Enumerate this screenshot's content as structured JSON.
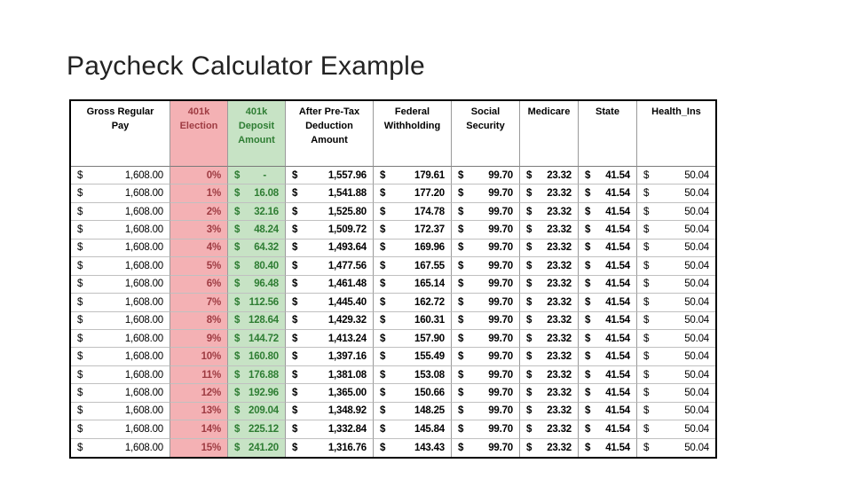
{
  "title": "Paycheck Calculator Example",
  "colors": {
    "election_bg": "#f4b1b4",
    "deposit_bg": "#c7e3c5",
    "election_text": "#9e3b42",
    "deposit_text": "#2e7d33",
    "border_outer": "#000000",
    "body_text": "#000000"
  },
  "table": {
    "columns": [
      {
        "id": "gross",
        "label": "Gross Regular\nPay",
        "type": "money",
        "header_color": "black",
        "bg": "none",
        "bold": false
      },
      {
        "id": "election",
        "label": "401k\nElection",
        "type": "percent",
        "header_color": "red",
        "bg": "pink",
        "bold": true
      },
      {
        "id": "deposit",
        "label": "401k\nDeposit\nAmount",
        "type": "money",
        "header_color": "green",
        "bg": "green",
        "bold": true
      },
      {
        "id": "after",
        "label": "After Pre-Tax\nDeduction\nAmount",
        "type": "money",
        "header_color": "black",
        "bg": "none",
        "bold": true
      },
      {
        "id": "federal",
        "label": "Federal\nWithholding",
        "type": "money",
        "header_color": "black",
        "bg": "none",
        "bold": true
      },
      {
        "id": "ss",
        "label": "Social\nSecurity",
        "type": "money",
        "header_color": "black",
        "bg": "none",
        "bold": true
      },
      {
        "id": "medicare",
        "label": "Medicare",
        "type": "money",
        "header_color": "black",
        "bg": "none",
        "bold": true
      },
      {
        "id": "state",
        "label": "State",
        "type": "money",
        "header_color": "black",
        "bg": "none",
        "bold": true
      },
      {
        "id": "health",
        "label": "Health_Ins",
        "type": "money",
        "header_color": "black",
        "bg": "none",
        "bold": false
      }
    ],
    "currency_symbol": "$",
    "rows": [
      {
        "gross": "1,608.00",
        "election": "0%",
        "deposit": "-",
        "after": "1,557.96",
        "federal": "179.61",
        "ss": "99.70",
        "medicare": "23.32",
        "state": "41.54",
        "health": "50.04"
      },
      {
        "gross": "1,608.00",
        "election": "1%",
        "deposit": "16.08",
        "after": "1,541.88",
        "federal": "177.20",
        "ss": "99.70",
        "medicare": "23.32",
        "state": "41.54",
        "health": "50.04"
      },
      {
        "gross": "1,608.00",
        "election": "2%",
        "deposit": "32.16",
        "after": "1,525.80",
        "federal": "174.78",
        "ss": "99.70",
        "medicare": "23.32",
        "state": "41.54",
        "health": "50.04"
      },
      {
        "gross": "1,608.00",
        "election": "3%",
        "deposit": "48.24",
        "after": "1,509.72",
        "federal": "172.37",
        "ss": "99.70",
        "medicare": "23.32",
        "state": "41.54",
        "health": "50.04"
      },
      {
        "gross": "1,608.00",
        "election": "4%",
        "deposit": "64.32",
        "after": "1,493.64",
        "federal": "169.96",
        "ss": "99.70",
        "medicare": "23.32",
        "state": "41.54",
        "health": "50.04"
      },
      {
        "gross": "1,608.00",
        "election": "5%",
        "deposit": "80.40",
        "after": "1,477.56",
        "federal": "167.55",
        "ss": "99.70",
        "medicare": "23.32",
        "state": "41.54",
        "health": "50.04"
      },
      {
        "gross": "1,608.00",
        "election": "6%",
        "deposit": "96.48",
        "after": "1,461.48",
        "federal": "165.14",
        "ss": "99.70",
        "medicare": "23.32",
        "state": "41.54",
        "health": "50.04"
      },
      {
        "gross": "1,608.00",
        "election": "7%",
        "deposit": "112.56",
        "after": "1,445.40",
        "federal": "162.72",
        "ss": "99.70",
        "medicare": "23.32",
        "state": "41.54",
        "health": "50.04"
      },
      {
        "gross": "1,608.00",
        "election": "8%",
        "deposit": "128.64",
        "after": "1,429.32",
        "federal": "160.31",
        "ss": "99.70",
        "medicare": "23.32",
        "state": "41.54",
        "health": "50.04"
      },
      {
        "gross": "1,608.00",
        "election": "9%",
        "deposit": "144.72",
        "after": "1,413.24",
        "federal": "157.90",
        "ss": "99.70",
        "medicare": "23.32",
        "state": "41.54",
        "health": "50.04"
      },
      {
        "gross": "1,608.00",
        "election": "10%",
        "deposit": "160.80",
        "after": "1,397.16",
        "federal": "155.49",
        "ss": "99.70",
        "medicare": "23.32",
        "state": "41.54",
        "health": "50.04"
      },
      {
        "gross": "1,608.00",
        "election": "11%",
        "deposit": "176.88",
        "after": "1,381.08",
        "federal": "153.08",
        "ss": "99.70",
        "medicare": "23.32",
        "state": "41.54",
        "health": "50.04"
      },
      {
        "gross": "1,608.00",
        "election": "12%",
        "deposit": "192.96",
        "after": "1,365.00",
        "federal": "150.66",
        "ss": "99.70",
        "medicare": "23.32",
        "state": "41.54",
        "health": "50.04"
      },
      {
        "gross": "1,608.00",
        "election": "13%",
        "deposit": "209.04",
        "after": "1,348.92",
        "federal": "148.25",
        "ss": "99.70",
        "medicare": "23.32",
        "state": "41.54",
        "health": "50.04"
      },
      {
        "gross": "1,608.00",
        "election": "14%",
        "deposit": "225.12",
        "after": "1,332.84",
        "federal": "145.84",
        "ss": "99.70",
        "medicare": "23.32",
        "state": "41.54",
        "health": "50.04"
      },
      {
        "gross": "1,608.00",
        "election": "15%",
        "deposit": "241.20",
        "after": "1,316.76",
        "federal": "143.43",
        "ss": "99.70",
        "medicare": "23.32",
        "state": "41.54",
        "health": "50.04"
      }
    ]
  }
}
